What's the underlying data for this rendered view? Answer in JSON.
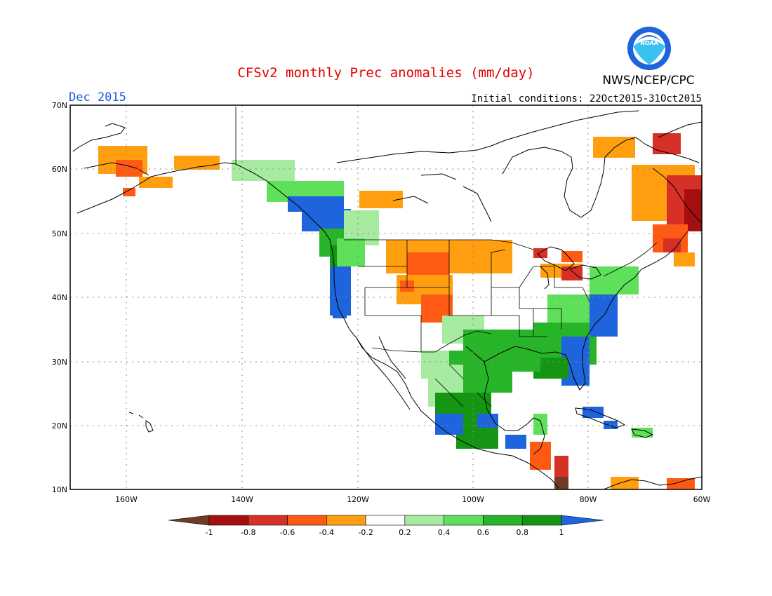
{
  "title": "CFSv2 monthly Prec anomalies (mm/day)",
  "month_label": "Dec 2015",
  "agency_label": "NWS/NCEP/CPC",
  "initial_conditions": "Initial conditions: 22Oct2015-31Oct2015",
  "logo_text": "NOAA",
  "lat_ticks": [
    "70N",
    "60N",
    "50N",
    "40N",
    "30N",
    "20N",
    "10N"
  ],
  "lon_ticks": [
    "160W",
    "140W",
    "120W",
    "100W",
    "80W",
    "60W"
  ],
  "colorbar": {
    "labels": [
      "-1",
      "-0.8",
      "-0.6",
      "-0.4",
      "-0.2",
      "0.2",
      "0.4",
      "0.6",
      "0.8",
      "1"
    ],
    "colors": [
      "#6e3c28",
      "#a50f0f",
      "#d73027",
      "#ff5a14",
      "#ff9f0f",
      "#ffffff",
      "#a6eba0",
      "#5ee05a",
      "#28b428",
      "#149614",
      "#1e64dc"
    ]
  },
  "colors": {
    "title": "#e60000",
    "month_label": "#1e5adc",
    "text": "#000000",
    "land_outline": "#000000",
    "grid": "#888888",
    "logo_outer": "#1e64dc",
    "logo_inner": "#39c2ee"
  }
}
